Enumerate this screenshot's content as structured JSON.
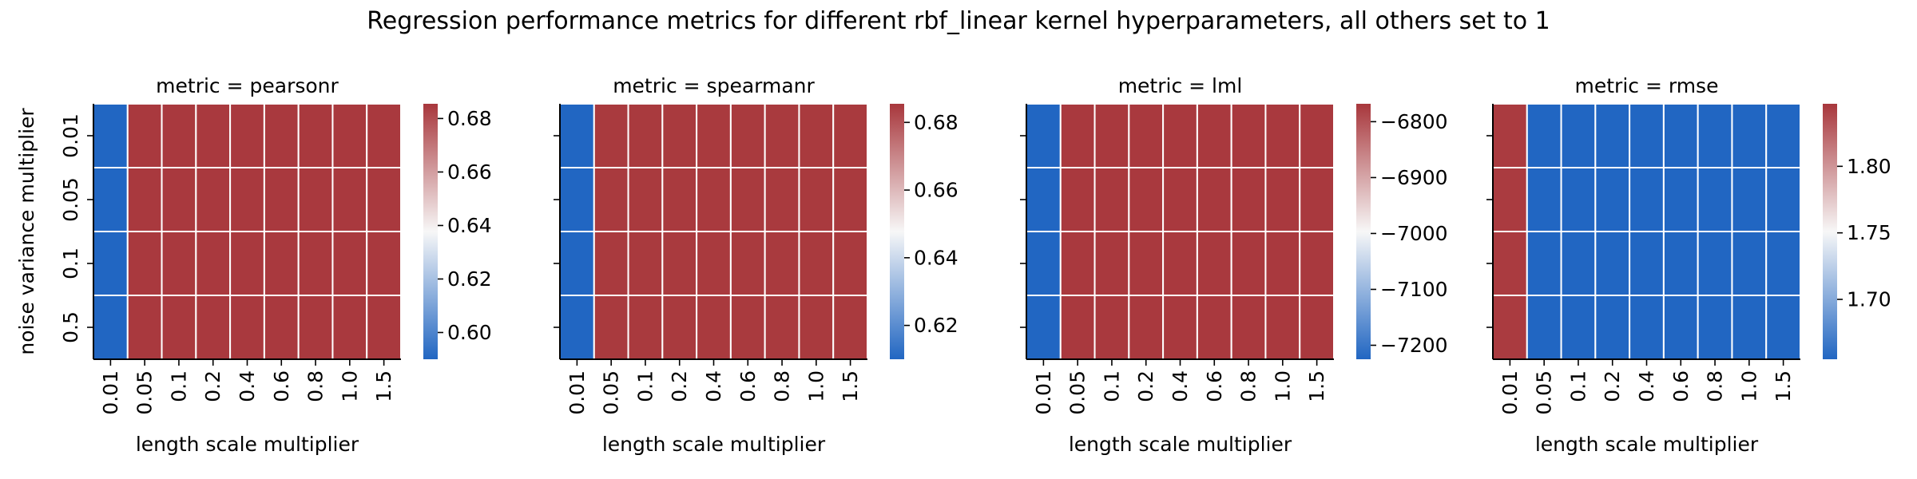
{
  "figure": {
    "title": "Regression performance metrics for different rbf_linear kernel hyperparameters, all others set to 1",
    "ylabel": "noise variance multiplier",
    "xlabel": "length scale multiplier",
    "colors": {
      "low": "#2166c2",
      "mid": "#f7f7f7",
      "high": "#a8373c",
      "grid": "#ffffff"
    }
  },
  "chart_data": [
    {
      "type": "heatmap",
      "title": "metric = pearsonr",
      "xlabel": "length scale multiplier",
      "ylabel": "noise variance multiplier",
      "x": [
        "0.01",
        "0.05",
        "0.1",
        "0.2",
        "0.4",
        "0.6",
        "0.8",
        "1.0",
        "1.5"
      ],
      "y": [
        "0.01",
        "0.05",
        "0.1",
        "0.5"
      ],
      "values": [
        [
          0.59,
          0.685,
          0.685,
          0.685,
          0.685,
          0.685,
          0.685,
          0.685,
          0.685
        ],
        [
          0.59,
          0.685,
          0.685,
          0.685,
          0.685,
          0.685,
          0.685,
          0.685,
          0.685
        ],
        [
          0.59,
          0.685,
          0.685,
          0.685,
          0.685,
          0.685,
          0.685,
          0.685,
          0.685
        ],
        [
          0.59,
          0.685,
          0.685,
          0.685,
          0.685,
          0.685,
          0.685,
          0.685,
          0.685
        ]
      ],
      "vmin": 0.59,
      "vmax": 0.6855,
      "colorbar_ticks": [
        0.6,
        0.62,
        0.64,
        0.66,
        0.68
      ],
      "colorbar_labels": [
        "0.60",
        "0.62",
        "0.64",
        "0.66",
        "0.68"
      ]
    },
    {
      "type": "heatmap",
      "title": "metric = spearmanr",
      "xlabel": "length scale multiplier",
      "ylabel": "",
      "x": [
        "0.01",
        "0.05",
        "0.1",
        "0.2",
        "0.4",
        "0.6",
        "0.8",
        "1.0",
        "1.5"
      ],
      "y": [
        "0.01",
        "0.05",
        "0.1",
        "0.5"
      ],
      "values": [
        [
          0.61,
          0.685,
          0.685,
          0.685,
          0.685,
          0.685,
          0.685,
          0.685,
          0.685
        ],
        [
          0.61,
          0.685,
          0.685,
          0.685,
          0.685,
          0.685,
          0.685,
          0.685,
          0.685
        ],
        [
          0.61,
          0.685,
          0.685,
          0.685,
          0.685,
          0.685,
          0.685,
          0.685,
          0.685
        ],
        [
          0.61,
          0.685,
          0.685,
          0.685,
          0.685,
          0.685,
          0.685,
          0.685,
          0.685
        ]
      ],
      "vmin": 0.61,
      "vmax": 0.6855,
      "colorbar_ticks": [
        0.62,
        0.64,
        0.66,
        0.68
      ],
      "colorbar_labels": [
        "0.62",
        "0.64",
        "0.66",
        "0.68"
      ]
    },
    {
      "type": "heatmap",
      "title": "metric = lml",
      "xlabel": "length scale multiplier",
      "ylabel": "",
      "x": [
        "0.01",
        "0.05",
        "0.1",
        "0.2",
        "0.4",
        "0.6",
        "0.8",
        "1.0",
        "1.5"
      ],
      "y": [
        "0.01",
        "0.05",
        "0.1",
        "0.5"
      ],
      "values": [
        [
          -7225,
          -6770,
          -6770,
          -6770,
          -6770,
          -6770,
          -6770,
          -6770,
          -6770
        ],
        [
          -7225,
          -6770,
          -6770,
          -6770,
          -6770,
          -6770,
          -6770,
          -6770,
          -6770
        ],
        [
          -7225,
          -6770,
          -6770,
          -6770,
          -6770,
          -6770,
          -6770,
          -6770,
          -6770
        ],
        [
          -7225,
          -6770,
          -6770,
          -6770,
          -6770,
          -6770,
          -6770,
          -6770,
          -6770
        ]
      ],
      "vmin": -7225,
      "vmax": -6768,
      "colorbar_ticks": [
        -7200,
        -7100,
        -7000,
        -6900,
        -6800
      ],
      "colorbar_labels": [
        "−7200",
        "−7100",
        "−7000",
        "−6900",
        "−6800"
      ]
    },
    {
      "type": "heatmap",
      "title": "metric = rmse",
      "xlabel": "length scale multiplier",
      "ylabel": "",
      "x": [
        "0.01",
        "0.05",
        "0.1",
        "0.2",
        "0.4",
        "0.6",
        "0.8",
        "1.0",
        "1.5"
      ],
      "y": [
        "0.01",
        "0.05",
        "0.1",
        "0.5"
      ],
      "values": [
        [
          1.845,
          1.655,
          1.655,
          1.655,
          1.655,
          1.655,
          1.655,
          1.655,
          1.655
        ],
        [
          1.845,
          1.655,
          1.655,
          1.655,
          1.655,
          1.655,
          1.655,
          1.655,
          1.655
        ],
        [
          1.845,
          1.655,
          1.655,
          1.655,
          1.655,
          1.655,
          1.655,
          1.655,
          1.655
        ],
        [
          1.845,
          1.655,
          1.655,
          1.655,
          1.655,
          1.655,
          1.655,
          1.655,
          1.655
        ]
      ],
      "vmin": 1.655,
      "vmax": 1.847,
      "colorbar_ticks": [
        1.7,
        1.75,
        1.8
      ],
      "colorbar_labels": [
        "1.70",
        "1.75",
        "1.80"
      ]
    }
  ]
}
